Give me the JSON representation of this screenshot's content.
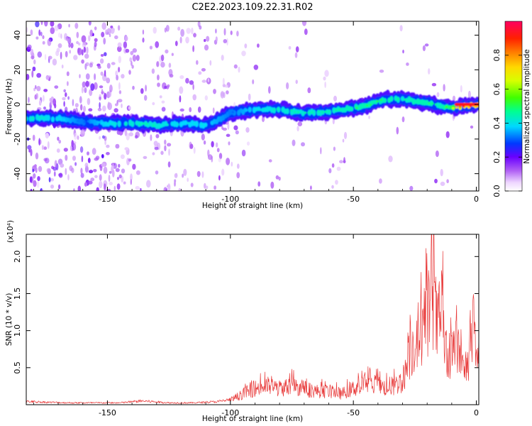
{
  "title": "C2E2.2023.109.22.31.R02",
  "colors": {
    "snr_line": "#e83a3a",
    "ridge_core": "#d42a2a"
  },
  "chart_data": [
    {
      "type": "heatmap",
      "title": "",
      "xlabel": "Height of straight line (km)",
      "ylabel": "Frequency (Hz)",
      "xlim": [
        -183,
        1
      ],
      "ylim": [
        -50,
        48
      ],
      "x_ticks": [
        -150,
        -100,
        -50,
        0
      ],
      "x_tick_labels": [
        "-150",
        "-100",
        "-50",
        "0"
      ],
      "y_ticks": [
        -40,
        -20,
        0,
        20,
        40
      ],
      "y_tick_labels": [
        "-40",
        "-20",
        "0",
        "20",
        "40"
      ],
      "grid": false,
      "colormap": "rainbow",
      "colorbar": {
        "label": "Normalized spectral amplitude",
        "range": [
          0,
          1
        ],
        "ticks": [
          0.0,
          0.2,
          0.4,
          0.6,
          0.8
        ],
        "tick_labels": [
          "0.0",
          "0.2",
          "0.4",
          "0.6",
          "0.8"
        ]
      },
      "ridge": {
        "x": [
          -183,
          -170,
          -160,
          -150,
          -140,
          -130,
          -120,
          -110,
          -105,
          -100,
          -90,
          -80,
          -70,
          -60,
          -50,
          -45,
          -40,
          -35,
          -30,
          -25,
          -20,
          -15,
          -10,
          -5,
          0
        ],
        "frequency": [
          -8,
          -8,
          -10,
          -11,
          -11,
          -12,
          -11,
          -12,
          -9,
          -5,
          -3,
          -3,
          -5,
          -4,
          -2,
          -1,
          2,
          3,
          3,
          2,
          1,
          -1,
          -2,
          -1,
          0
        ],
        "amplitude": [
          0.45,
          0.4,
          0.3,
          0.4,
          0.45,
          0.45,
          0.4,
          0.4,
          0.35,
          0.3,
          0.4,
          0.45,
          0.45,
          0.45,
          0.5,
          0.5,
          0.5,
          0.5,
          0.45,
          0.5,
          0.5,
          0.45,
          0.6,
          0.95,
          0.95
        ]
      }
    },
    {
      "type": "line",
      "title": "",
      "xlabel": "Height of straight line (km)",
      "ylabel": "SNR (10 * v/v)",
      "y_multiplier": "(x10⁴)",
      "xlim": [
        -183,
        1
      ],
      "ylim": [
        0,
        2.3
      ],
      "x_ticks": [
        -150,
        -100,
        -50,
        0
      ],
      "x_tick_labels": [
        "-150",
        "-100",
        "-50",
        "0"
      ],
      "y_ticks": [
        0.5,
        1.0,
        1.5,
        2.0
      ],
      "y_tick_labels": [
        "0.5",
        "1.0",
        "1.5",
        "2.0"
      ],
      "grid": false,
      "series": [
        {
          "x": [
            -183,
            -175,
            -165,
            -155,
            -145,
            -136,
            -125,
            -115,
            -105,
            -100,
            -95,
            -90,
            -85,
            -80,
            -75,
            -70,
            -65,
            -60,
            -55,
            -50,
            -45,
            -40,
            -35,
            -30,
            -27,
            -25,
            -22,
            -20,
            -18,
            -16,
            -14,
            -12,
            -10,
            -8,
            -5,
            -3,
            -1,
            0
          ],
          "values": [
            0.05,
            0.04,
            0.03,
            0.03,
            0.03,
            0.06,
            0.03,
            0.03,
            0.05,
            0.08,
            0.2,
            0.3,
            0.35,
            0.3,
            0.35,
            0.3,
            0.25,
            0.25,
            0.2,
            0.3,
            0.4,
            0.35,
            0.3,
            0.45,
            0.9,
            1.2,
            1.4,
            1.6,
            2.25,
            1.4,
            1.7,
            0.7,
            0.9,
            1.1,
            0.6,
            0.9,
            1.15,
            0.85
          ]
        }
      ]
    }
  ]
}
